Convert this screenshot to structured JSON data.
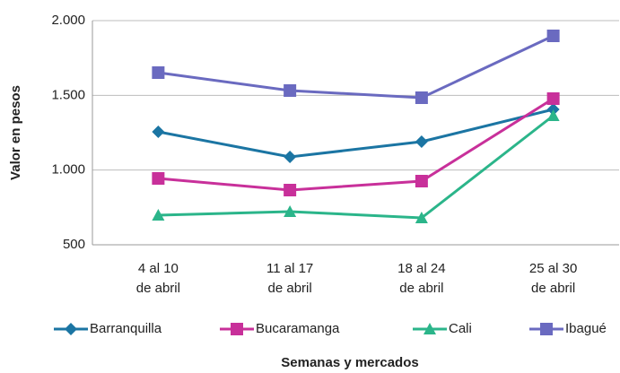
{
  "chart_data": {
    "type": "line",
    "categories": [
      "4 al 10\nde abril",
      "11 al 17\nde abril",
      "18 al 24\nde abril",
      "25 al 30\nde abril"
    ],
    "series": [
      {
        "name": "Barranquilla",
        "color": "#1b75a3",
        "marker": "diamond",
        "values": [
          1256,
          1088,
          1190,
          1406
        ]
      },
      {
        "name": "Bucaramanga",
        "color": "#c8309a",
        "marker": "square",
        "values": [
          944,
          866,
          926,
          1478
        ]
      },
      {
        "name": "Cali",
        "color": "#2bb58a",
        "marker": "triangle",
        "values": [
          698,
          722,
          680,
          1364
        ]
      },
      {
        "name": "Ibagué",
        "color": "#6a6ac0",
        "marker": "square",
        "values": [
          1652,
          1532,
          1484,
          1898
        ]
      }
    ],
    "ylim": [
      500,
      2000
    ],
    "yticks": [
      500,
      {
        "value": 1000,
        "label": "1.000"
      },
      {
        "value": 1500,
        "label": "1.500"
      },
      {
        "value": 2000,
        "label": "2.000"
      }
    ],
    "ylabel": "Valor en pesos",
    "xlabel": "Semanas y mercados",
    "grid": true,
    "legend": "bottom"
  }
}
